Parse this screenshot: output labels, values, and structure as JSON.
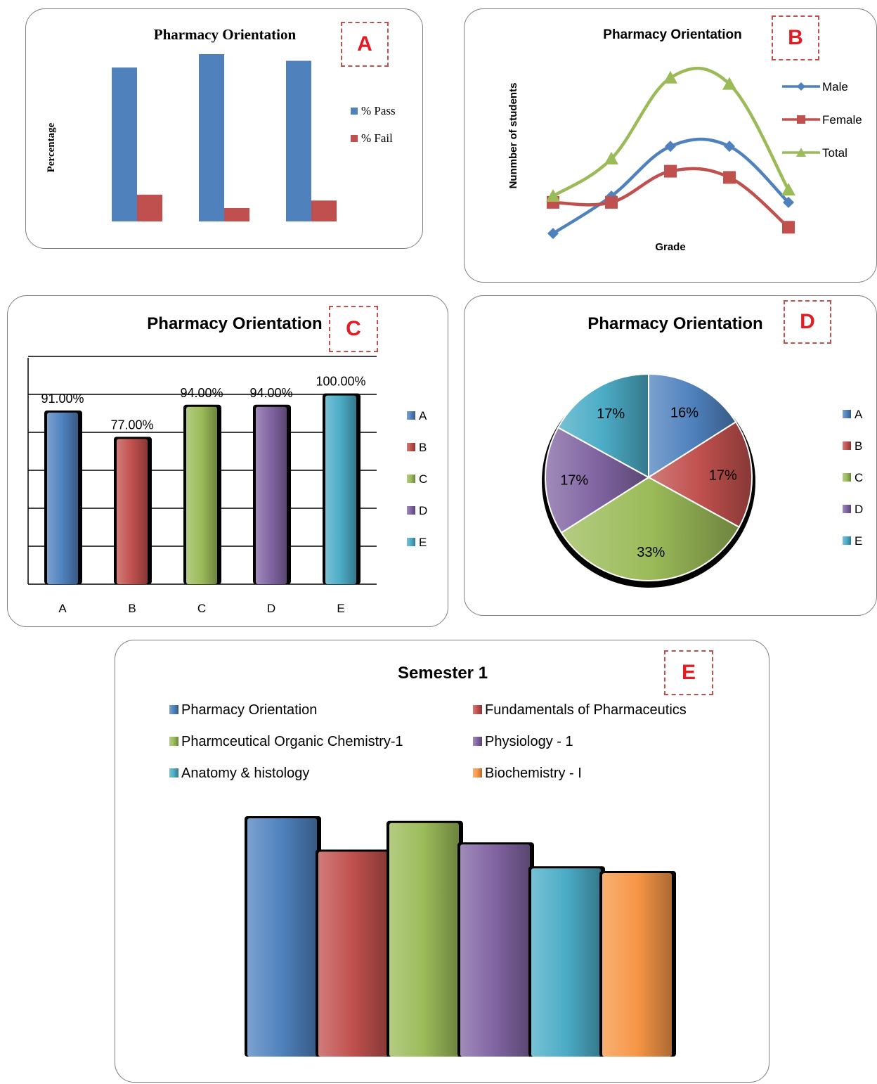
{
  "colors": {
    "blue": "#4f81bd",
    "red": "#c0504d",
    "green": "#9bbb59",
    "purple": "#8064a2",
    "cyan": "#4bacc6",
    "orange": "#f79646",
    "tag": "#e31b23"
  },
  "panels": [
    {
      "tag": "A"
    },
    {
      "tag": "B"
    },
    {
      "tag": "C"
    },
    {
      "tag": "D"
    },
    {
      "tag": "E"
    }
  ],
  "chart_data": [
    {
      "panel": "A",
      "type": "bar",
      "title": "Pharmacy Orientation",
      "xlabel": "",
      "ylabel": "Percentage",
      "categories": [
        "",
        "",
        ""
      ],
      "series": [
        {
          "name": "% Pass",
          "values": [
            92,
            100,
            96
          ]
        },
        {
          "name": "% Fail",
          "values": [
            16,
            8,
            12.5
          ]
        }
      ],
      "ylim": [
        0,
        100
      ],
      "grid": false,
      "legend": "right"
    },
    {
      "panel": "B",
      "type": "line",
      "title": "Pharmacy Orientation",
      "xlabel": "Grade",
      "ylabel": "Nunmber of students",
      "categories": [
        "",
        "",
        "",
        "",
        ""
      ],
      "series": [
        {
          "name": "Male",
          "values": [
            1,
            7,
            15,
            15,
            6
          ]
        },
        {
          "name": "Female",
          "values": [
            6,
            6,
            11,
            10,
            2
          ]
        },
        {
          "name": "Total",
          "values": [
            7,
            13,
            26,
            25,
            8
          ]
        }
      ],
      "ylim": [
        0,
        28
      ],
      "grid": false,
      "legend": "right"
    },
    {
      "panel": "C",
      "type": "bar",
      "title": "Pharmacy Orientation",
      "categories": [
        "A",
        "B",
        "C",
        "D",
        "E"
      ],
      "values": [
        91,
        77,
        94,
        94,
        100
      ],
      "data_labels": [
        "91.00%",
        "77.00%",
        "94.00%",
        "94.00%",
        "100.00%"
      ],
      "ylim": [
        0,
        120
      ],
      "grid": true,
      "legend": "right"
    },
    {
      "panel": "D",
      "type": "pie",
      "title": "Pharmacy Orientation",
      "categories": [
        "A",
        "B",
        "C",
        "D",
        "E"
      ],
      "values": [
        16,
        17,
        33,
        17,
        17
      ],
      "data_labels": [
        "16%",
        "17%",
        "33%",
        "17%",
        "17%"
      ],
      "legend": "right"
    },
    {
      "panel": "E",
      "type": "bar",
      "title": "Semester 1",
      "categories": [
        "Pharmacy Orientation",
        "Fundamentals of  Pharmaceutics",
        "Pharmceutical  Organic Chemistry-1",
        "Physiology - 1",
        "Anatomy & histology",
        "Biochemistry - I"
      ],
      "values": [
        100,
        86,
        98,
        89,
        79,
        77
      ],
      "ylim": [
        0,
        100
      ],
      "grid": false,
      "legend": "top"
    }
  ]
}
